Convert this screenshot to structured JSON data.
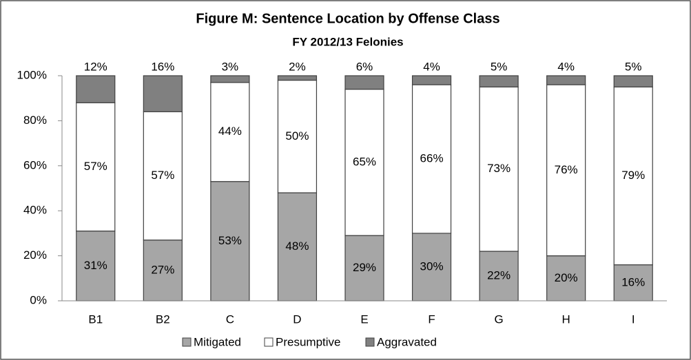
{
  "chart_data": {
    "type": "stacked_bar",
    "title": "Figure M: Sentence Location by Offense Class",
    "subtitle": "FY 2012/13 Felonies",
    "categories": [
      "B1",
      "B2",
      "C",
      "D",
      "E",
      "F",
      "G",
      "H",
      "I"
    ],
    "series": [
      {
        "name": "Mitigated",
        "color": "#a6a6a6",
        "values": [
          31,
          27,
          53,
          48,
          29,
          30,
          22,
          20,
          16
        ],
        "value_labels": [
          "31%",
          "27%",
          "53%",
          "48%",
          "29%",
          "30%",
          "22%",
          "20%",
          "16%"
        ]
      },
      {
        "name": "Presumptive",
        "color": "#ffffff",
        "values": [
          57,
          57,
          44,
          50,
          65,
          66,
          73,
          76,
          79
        ],
        "value_labels": [
          "57%",
          "57%",
          "44%",
          "50%",
          "65%",
          "66%",
          "73%",
          "76%",
          "79%"
        ]
      },
      {
        "name": "Aggravated",
        "color": "#808080",
        "values": [
          12,
          16,
          3,
          2,
          6,
          4,
          5,
          4,
          5
        ],
        "value_labels": [
          "12%",
          "16%",
          "3%",
          "2%",
          "6%",
          "4%",
          "5%",
          "4%",
          "5%"
        ]
      }
    ],
    "ylim": [
      0,
      100
    ],
    "yticks": [
      {
        "value": 0,
        "label": "0%"
      },
      {
        "value": 20,
        "label": "20%"
      },
      {
        "value": 40,
        "label": "40%"
      },
      {
        "value": 60,
        "label": "60%"
      },
      {
        "value": 80,
        "label": "80%"
      },
      {
        "value": 100,
        "label": "100%"
      }
    ],
    "legend": "bottom"
  }
}
